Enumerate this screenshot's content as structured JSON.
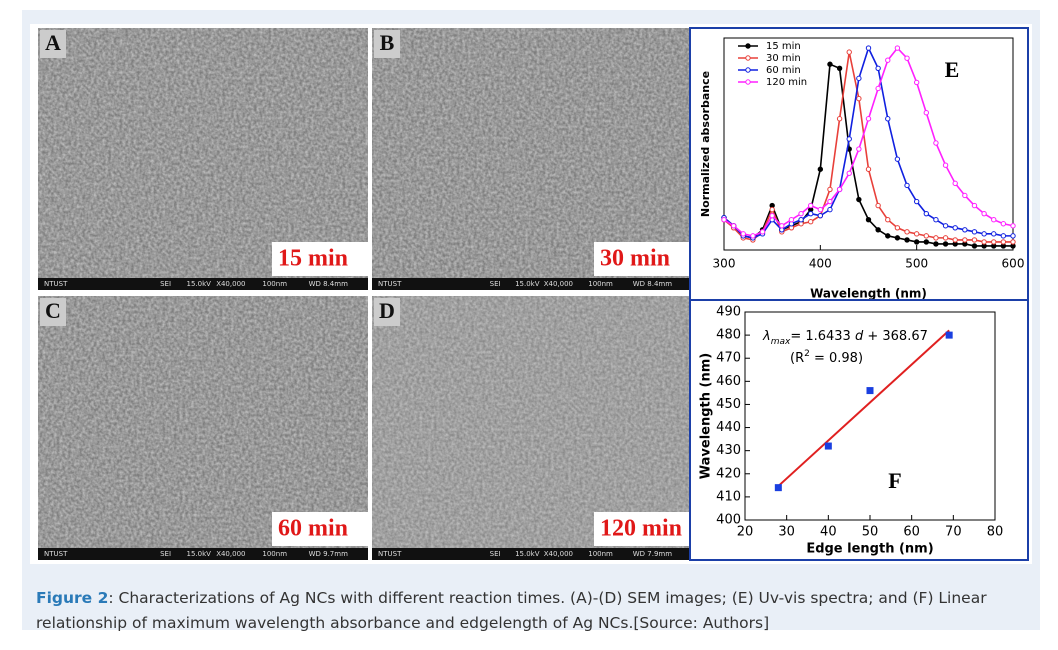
{
  "panels": [
    {
      "label": "A",
      "time": "15 min",
      "footer": [
        "NTUST",
        "SEI",
        "15.0kV",
        "X40,000",
        "100nm",
        "WD 8.4mm"
      ]
    },
    {
      "label": "B",
      "time": "30 min",
      "footer": [
        "NTUST",
        "SEI",
        "15.0kV",
        "X40,000",
        "100nm",
        "WD 8.4mm"
      ]
    },
    {
      "label": "C",
      "time": "60 min",
      "footer": [
        "NTUST",
        "SEI",
        "15.0kV",
        "X40,000",
        "100nm",
        "WD 9.7mm"
      ]
    },
    {
      "label": "D",
      "time": "120 min",
      "footer": [
        "NTUST",
        "SEI",
        "15.0kV",
        "X40,000",
        "100nm",
        "WD 7.9mm"
      ]
    }
  ],
  "chart_data": [
    {
      "type": "line",
      "panel_label": "E",
      "y_label": "Normalized absorbance",
      "x_label": "Wavelength (nm)",
      "xlim": [
        300,
        600
      ],
      "xticks": [
        300,
        400,
        500,
        600
      ],
      "ylim": [
        0,
        1.05
      ],
      "legend": "top-left",
      "x": [
        300,
        310,
        320,
        330,
        340,
        350,
        360,
        370,
        380,
        390,
        400,
        410,
        420,
        430,
        440,
        450,
        460,
        470,
        480,
        490,
        500,
        510,
        520,
        530,
        540,
        550,
        560,
        570,
        580,
        590,
        600
      ],
      "series": [
        {
          "name": "15 min",
          "color": "#000000",
          "values": [
            0.16,
            0.12,
            0.07,
            0.06,
            0.1,
            0.22,
            0.1,
            0.12,
            0.14,
            0.2,
            0.4,
            0.92,
            0.9,
            0.5,
            0.25,
            0.15,
            0.1,
            0.07,
            0.06,
            0.05,
            0.04,
            0.04,
            0.03,
            0.03,
            0.03,
            0.03,
            0.02,
            0.02,
            0.02,
            0.02,
            0.02
          ]
        },
        {
          "name": "30 min",
          "color": "#e8403a",
          "values": [
            0.15,
            0.11,
            0.06,
            0.05,
            0.09,
            0.2,
            0.09,
            0.11,
            0.13,
            0.14,
            0.17,
            0.3,
            0.65,
            0.98,
            0.75,
            0.4,
            0.22,
            0.15,
            0.11,
            0.09,
            0.08,
            0.07,
            0.06,
            0.06,
            0.05,
            0.05,
            0.05,
            0.04,
            0.04,
            0.04,
            0.04
          ]
        },
        {
          "name": "60 min",
          "color": "#1020e0",
          "values": [
            0.16,
            0.12,
            0.07,
            0.06,
            0.08,
            0.15,
            0.1,
            0.13,
            0.15,
            0.18,
            0.17,
            0.2,
            0.3,
            0.55,
            0.85,
            1.0,
            0.9,
            0.65,
            0.45,
            0.32,
            0.24,
            0.18,
            0.15,
            0.12,
            0.11,
            0.1,
            0.09,
            0.08,
            0.08,
            0.07,
            0.07
          ]
        },
        {
          "name": "120 min",
          "color": "#ff20ff",
          "values": [
            0.15,
            0.12,
            0.08,
            0.07,
            0.09,
            0.17,
            0.12,
            0.15,
            0.18,
            0.22,
            0.2,
            0.24,
            0.3,
            0.38,
            0.5,
            0.65,
            0.8,
            0.94,
            1.0,
            0.95,
            0.83,
            0.68,
            0.53,
            0.42,
            0.33,
            0.27,
            0.22,
            0.18,
            0.15,
            0.13,
            0.12
          ]
        }
      ]
    },
    {
      "type": "scatter",
      "panel_label": "F",
      "y_label": "Wavelength (nm)",
      "x_label": "Edge length (nm)",
      "xlim": [
        20,
        80
      ],
      "xticks": [
        20,
        30,
        40,
        50,
        60,
        70,
        80
      ],
      "ylim": [
        400,
        490
      ],
      "yticks": [
        400,
        410,
        420,
        430,
        440,
        450,
        460,
        470,
        480,
        490
      ],
      "x": [
        28,
        40,
        50,
        69
      ],
      "values": [
        414,
        432,
        456,
        480
      ],
      "color": "#1a3fe0",
      "fit": {
        "x": [
          28,
          69
        ],
        "y": [
          414.68,
          482.06
        ],
        "color": "#e02020"
      },
      "equation": [
        "λ",
        "max",
        "= 1.6433 ",
        "d",
        " + 368.67"
      ],
      "r2": [
        "(R",
        "2",
        " = 0.98)"
      ]
    }
  ],
  "caption": {
    "label": "Figure 2",
    "text": ": Characterizations of Ag NCs with different reaction times. (A)-(D) SEM images; (E) Uv-vis spectra; and (F) Linear relationship of maximum wavelength absorbance and edgelength of Ag NCs.[Source: Authors]"
  }
}
